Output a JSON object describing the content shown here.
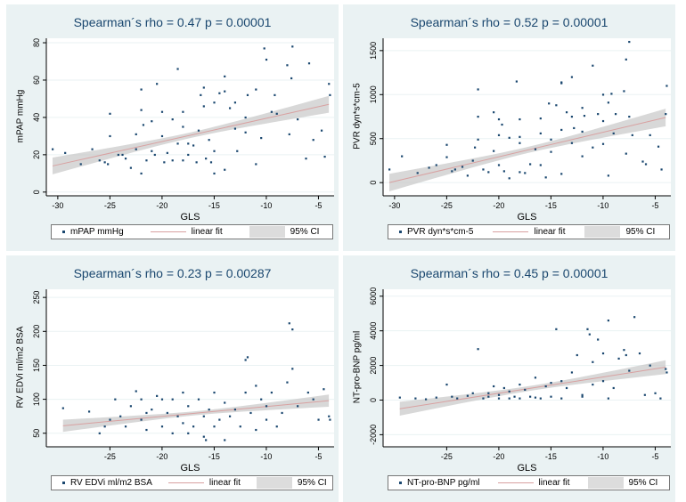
{
  "chart_data": [
    {
      "type": "scatter",
      "title": "Spearman´s rho = 0.47 p = 0.00001",
      "xlabel": "GLS",
      "ylabel": "mPAP mmHg",
      "xlim": [
        -31.1,
        -3.5
      ],
      "ylim": [
        -2,
        82.4
      ],
      "xticks": [
        -30,
        -25,
        -20,
        -15,
        -10,
        -5
      ],
      "yticks": [
        0,
        20,
        40,
        60,
        80
      ],
      "legend": [
        "mPAP mmHg",
        "linear fit",
        "95% CI"
      ],
      "legend_position": "bottom",
      "fit": {
        "x": [
          -30.5,
          -4
        ],
        "y": [
          14,
          47
        ],
        "ci_halfwidth_ends": [
          4.5,
          4.5
        ],
        "ci_halfwidth_mid": 1.5
      },
      "points": [
        [
          -30.5,
          23
        ],
        [
          -29.3,
          21
        ],
        [
          -27.8,
          15
        ],
        [
          -26.7,
          23
        ],
        [
          -26,
          17
        ],
        [
          -25.5,
          16
        ],
        [
          -25,
          30
        ],
        [
          -25,
          42
        ],
        [
          -25.2,
          15
        ],
        [
          -24.2,
          20
        ],
        [
          -23.5,
          18
        ],
        [
          -23,
          13
        ],
        [
          -22.5,
          31
        ],
        [
          -22,
          55
        ],
        [
          -22,
          44
        ],
        [
          -22,
          10
        ],
        [
          -21.8,
          36
        ],
        [
          -21.5,
          17
        ],
        [
          -21,
          38
        ],
        [
          -20.5,
          58
        ],
        [
          -20.7,
          20
        ],
        [
          -20,
          43
        ],
        [
          -20,
          30
        ],
        [
          -19.8,
          16
        ],
        [
          -19.5,
          21
        ],
        [
          -19,
          39
        ],
        [
          -18.5,
          66
        ],
        [
          -18.5,
          26
        ],
        [
          -18,
          43
        ],
        [
          -18,
          35
        ],
        [
          -18,
          17
        ],
        [
          -17.5,
          20
        ],
        [
          -17,
          25
        ],
        [
          -16.5,
          33
        ],
        [
          -16.3,
          52
        ],
        [
          -16,
          56
        ],
        [
          -16,
          46
        ],
        [
          -15.8,
          18
        ],
        [
          -15.5,
          28
        ],
        [
          -15,
          48
        ],
        [
          -15,
          22
        ],
        [
          -15,
          10
        ],
        [
          -14.5,
          53
        ],
        [
          -14,
          62
        ],
        [
          -14,
          54
        ],
        [
          -14,
          12
        ],
        [
          -13.5,
          45
        ],
        [
          -13,
          48
        ],
        [
          -12.8,
          22
        ],
        [
          -12,
          40
        ],
        [
          -12,
          32
        ],
        [
          -11.8,
          52
        ],
        [
          -11,
          55
        ],
        [
          -11,
          15
        ],
        [
          -10.5,
          29
        ],
        [
          -10.2,
          77
        ],
        [
          -10,
          71
        ],
        [
          -9.5,
          43
        ],
        [
          -9.2,
          52
        ],
        [
          -9,
          42
        ],
        [
          -8,
          68
        ],
        [
          -7.8,
          31
        ],
        [
          -7.5,
          78
        ],
        [
          -7.6,
          61
        ],
        [
          -7,
          39
        ],
        [
          -6.2,
          18
        ],
        [
          -5.9,
          69
        ],
        [
          -5.5,
          28
        ],
        [
          -4.7,
          33
        ],
        [
          -4.4,
          19
        ],
        [
          -4,
          58
        ],
        [
          -3.9,
          52
        ],
        [
          -13,
          34
        ],
        [
          -17.5,
          26
        ],
        [
          -19,
          17
        ],
        [
          -21,
          22
        ],
        [
          -22.5,
          23
        ],
        [
          -23.8,
          20
        ],
        [
          -15.3,
          16
        ],
        [
          -16.7,
          16
        ]
      ]
    },
    {
      "type": "scatter",
      "title": "Spearman´s rho = 0.52 p = 0.00001",
      "xlabel": "GLS",
      "ylabel": "PVR dyn*s*cm-5",
      "xlim": [
        -31.1,
        -3.5
      ],
      "ylim": [
        -150,
        1640
      ],
      "xticks": [
        -30,
        -25,
        -20,
        -15,
        -10,
        -5
      ],
      "yticks": [
        0,
        500,
        1000,
        1500
      ],
      "legend": [
        "PVR dyn*s*cm-5",
        "linear fit",
        "95% CI"
      ],
      "legend_position": "bottom",
      "fit": {
        "x": [
          -30.5,
          -4
        ],
        "y": [
          0,
          740
        ],
        "ci_halfwidth_ends": [
          100,
          100
        ],
        "ci_halfwidth_mid": 35
      },
      "points": [
        [
          -30.5,
          150
        ],
        [
          -29.3,
          300
        ],
        [
          -27.8,
          110
        ],
        [
          -26.7,
          170
        ],
        [
          -26,
          200
        ],
        [
          -25,
          290
        ],
        [
          -25,
          430
        ],
        [
          -24.2,
          150
        ],
        [
          -23,
          80
        ],
        [
          -22.5,
          250
        ],
        [
          -22,
          1060
        ],
        [
          -22,
          750
        ],
        [
          -22,
          490
        ],
        [
          -22.3,
          400
        ],
        [
          -21.5,
          150
        ],
        [
          -20.5,
          800
        ],
        [
          -20.5,
          360
        ],
        [
          -20,
          720
        ],
        [
          -20,
          540
        ],
        [
          -19.7,
          660
        ],
        [
          -19.5,
          130
        ],
        [
          -19,
          510
        ],
        [
          -19,
          50
        ],
        [
          -18.3,
          1150
        ],
        [
          -18,
          720
        ],
        [
          -18,
          520
        ],
        [
          -18,
          450
        ],
        [
          -18,
          120
        ],
        [
          -17,
          210
        ],
        [
          -16,
          730
        ],
        [
          -16,
          560
        ],
        [
          -16,
          200
        ],
        [
          -15.5,
          60
        ],
        [
          -15.2,
          900
        ],
        [
          -15,
          490
        ],
        [
          -15,
          350
        ],
        [
          -14.5,
          880
        ],
        [
          -14,
          1140
        ],
        [
          -14,
          1130
        ],
        [
          -14,
          600
        ],
        [
          -14,
          100
        ],
        [
          -13.5,
          800
        ],
        [
          -13,
          1200
        ],
        [
          -13,
          750
        ],
        [
          -13,
          450
        ],
        [
          -12.8,
          620
        ],
        [
          -12,
          850
        ],
        [
          -12,
          580
        ],
        [
          -12,
          300
        ],
        [
          -11.8,
          760
        ],
        [
          -11,
          1330
        ],
        [
          -11,
          400
        ],
        [
          -10.5,
          780
        ],
        [
          -10,
          1000
        ],
        [
          -10,
          700
        ],
        [
          -10,
          440
        ],
        [
          -9.5,
          910
        ],
        [
          -9.5,
          80
        ],
        [
          -9.2,
          1010
        ],
        [
          -9,
          560
        ],
        [
          -8.8,
          780
        ],
        [
          -8,
          1040
        ],
        [
          -7.8,
          1400
        ],
        [
          -7.8,
          330
        ],
        [
          -7.5,
          1600
        ],
        [
          -7.5,
          750
        ],
        [
          -7.2,
          540
        ],
        [
          -6.2,
          240
        ],
        [
          -5.9,
          210
        ],
        [
          -5.5,
          540
        ],
        [
          -4.7,
          410
        ],
        [
          -4.4,
          150
        ],
        [
          -4,
          780
        ],
        [
          -3.9,
          1100
        ],
        [
          -16.5,
          380
        ],
        [
          -17.5,
          110
        ],
        [
          -20,
          200
        ],
        [
          -21,
          120
        ],
        [
          -23.5,
          180
        ],
        [
          -24.5,
          130
        ]
      ]
    },
    {
      "type": "scatter",
      "title": "Spearman´s rho = 0.23 p = 0.00287",
      "xlabel": "GLS",
      "ylabel": "RV EDVi ml/m2 BSA",
      "xlim": [
        -31.1,
        -3.5
      ],
      "ylim": [
        30,
        262
      ],
      "xticks": [
        -25,
        -20,
        -15,
        -10,
        -5
      ],
      "yticks": [
        50,
        100,
        150,
        200,
        250
      ],
      "legend": [
        "RV EDVi ml/m2 BSA",
        "linear fit",
        "95% CI"
      ],
      "legend_position": "bottom",
      "fit": {
        "x": [
          -29.5,
          -4
        ],
        "y": [
          61,
          98
        ],
        "ci_halfwidth_ends": [
          9,
          9
        ],
        "ci_halfwidth_mid": 3
      },
      "points": [
        [
          -29.5,
          87
        ],
        [
          -27,
          82
        ],
        [
          -26,
          50
        ],
        [
          -25.5,
          60
        ],
        [
          -25,
          70
        ],
        [
          -24.5,
          100
        ],
        [
          -24,
          75
        ],
        [
          -23,
          90
        ],
        [
          -22.5,
          112
        ],
        [
          -22,
          100
        ],
        [
          -22,
          70
        ],
        [
          -21.5,
          55
        ],
        [
          -21,
          85
        ],
        [
          -20.5,
          105
        ],
        [
          -20,
          100
        ],
        [
          -20,
          60
        ],
        [
          -19.5,
          80
        ],
        [
          -19,
          100
        ],
        [
          -19,
          50
        ],
        [
          -18.5,
          75
        ],
        [
          -18,
          110
        ],
        [
          -18,
          65
        ],
        [
          -17.5,
          90
        ],
        [
          -17,
          60
        ],
        [
          -16.5,
          100
        ],
        [
          -16,
          75
        ],
        [
          -16,
          45
        ],
        [
          -15.5,
          85
        ],
        [
          -15,
          110
        ],
        [
          -15,
          60
        ],
        [
          -14.5,
          70
        ],
        [
          -14,
          95
        ],
        [
          -14,
          40
        ],
        [
          -13.5,
          75
        ],
        [
          -13,
          85
        ],
        [
          -12.5,
          60
        ],
        [
          -12,
          158
        ],
        [
          -11.8,
          162
        ],
        [
          -12,
          110
        ],
        [
          -11.5,
          80
        ],
        [
          -11,
          120
        ],
        [
          -11,
          55
        ],
        [
          -10.5,
          100
        ],
        [
          -10,
          90
        ],
        [
          -10,
          70
        ],
        [
          -9.5,
          110
        ],
        [
          -9,
          60
        ],
        [
          -8.5,
          80
        ],
        [
          -8,
          125
        ],
        [
          -7.8,
          212
        ],
        [
          -7.5,
          203
        ],
        [
          -7.5,
          145
        ],
        [
          -7,
          90
        ],
        [
          -6,
          110
        ],
        [
          -5.5,
          100
        ],
        [
          -5,
          70
        ],
        [
          -4.5,
          115
        ],
        [
          -4,
          75
        ],
        [
          -3.9,
          70
        ],
        [
          -15.8,
          40
        ],
        [
          -17.5,
          50
        ],
        [
          -21.5,
          80
        ],
        [
          -23.5,
          60
        ]
      ]
    },
    {
      "type": "scatter",
      "title": "Spearman´s rho = 0.45 p = 0.00001",
      "xlabel": "GLS",
      "ylabel": "NT-pro-BNP pg/ml",
      "xlim": [
        -31.1,
        -3.5
      ],
      "ylim": [
        -2700,
        6400
      ],
      "xticks": [
        -25,
        -20,
        -15,
        -10,
        -5
      ],
      "yticks": [
        -2000,
        0,
        2000,
        4000,
        6000
      ],
      "legend": [
        "NT-pro-BNP pg/ml",
        "linear fit",
        "95% CI"
      ],
      "legend_position": "bottom",
      "fit": {
        "x": [
          -29.5,
          -4
        ],
        "y": [
          -500,
          1900
        ],
        "ci_halfwidth_ends": [
          400,
          400
        ],
        "ci_halfwidth_mid": 140
      },
      "points": [
        [
          -29.5,
          150
        ],
        [
          -28,
          100
        ],
        [
          -27,
          50
        ],
        [
          -26,
          150
        ],
        [
          -25,
          900
        ],
        [
          -24.5,
          200
        ],
        [
          -24,
          100
        ],
        [
          -23,
          250
        ],
        [
          -22.5,
          400
        ],
        [
          -22,
          2950
        ],
        [
          -21.5,
          100
        ],
        [
          -21,
          400
        ],
        [
          -20.5,
          800
        ],
        [
          -20,
          300
        ],
        [
          -20,
          100
        ],
        [
          -19.5,
          700
        ],
        [
          -19,
          500
        ],
        [
          -18.5,
          200
        ],
        [
          -18,
          900
        ],
        [
          -18,
          100
        ],
        [
          -17.5,
          600
        ],
        [
          -17,
          200
        ],
        [
          -16.5,
          1300
        ],
        [
          -16,
          100
        ],
        [
          -15.5,
          800
        ],
        [
          -15,
          1000
        ],
        [
          -15,
          200
        ],
        [
          -14.5,
          4100
        ],
        [
          -14,
          1100
        ],
        [
          -14,
          100
        ],
        [
          -13.5,
          700
        ],
        [
          -13,
          1600
        ],
        [
          -12.5,
          2600
        ],
        [
          -12,
          200
        ],
        [
          -11.5,
          4100
        ],
        [
          -11.3,
          3800
        ],
        [
          -11,
          2200
        ],
        [
          -11,
          900
        ],
        [
          -10.5,
          3500
        ],
        [
          -10,
          2700
        ],
        [
          -10,
          1100
        ],
        [
          -9.5,
          4600
        ],
        [
          -9.5,
          100
        ],
        [
          -9,
          700
        ],
        [
          -8.5,
          2400
        ],
        [
          -8,
          2900
        ],
        [
          -7.8,
          2600
        ],
        [
          -7.5,
          1700
        ],
        [
          -7,
          4800
        ],
        [
          -6.5,
          2700
        ],
        [
          -6,
          300
        ],
        [
          -5.5,
          2000
        ],
        [
          -5,
          400
        ],
        [
          -4.5,
          100
        ],
        [
          -4,
          1800
        ],
        [
          -3.9,
          1600
        ],
        [
          -12,
          300
        ],
        [
          -16.5,
          150
        ],
        [
          -19,
          100
        ],
        [
          -21,
          200
        ]
      ]
    }
  ],
  "colors": {
    "points": "#1a476f",
    "fit": "#d8a1a1",
    "ci": "#c8c8c8",
    "panel_bg": "#eaf2f3",
    "title": "#1a476f"
  }
}
